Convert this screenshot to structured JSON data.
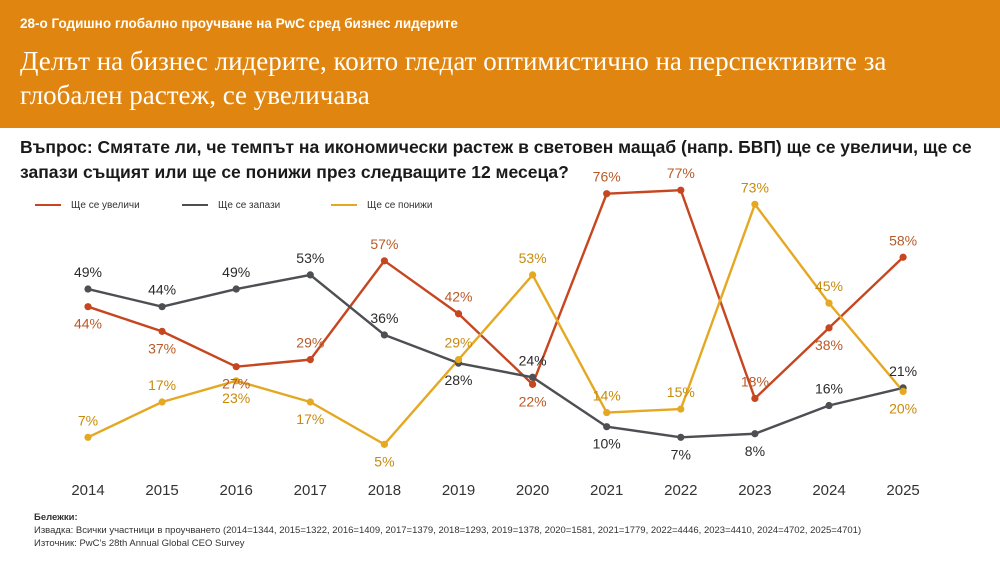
{
  "header": {
    "supertitle": "28-о Годишно глобално проучване на PwC сред бизнес лидерите",
    "title": "Делът на бизнес лидерите, които гледат оптимистично на перспективите за глобален растеж, се увеличава"
  },
  "question": "Въпрос: Смятате ли, че темпът на икономически растеж в световен мащаб (напр. БВП) ще се увеличи, ще се запази същият или ще се понижи през следващите 12 месеца?",
  "chart_data": {
    "type": "line",
    "categories": [
      "2014",
      "2015",
      "2016",
      "2017",
      "2018",
      "2019",
      "2020",
      "2021",
      "2022",
      "2023",
      "2024",
      "2025"
    ],
    "series": [
      {
        "name": "Ще се увеличи",
        "color": "#c6461f",
        "label_color": "#b85a28",
        "values": [
          44,
          37,
          27,
          29,
          57,
          42,
          22,
          76,
          77,
          18,
          38,
          58
        ]
      },
      {
        "name": "Ще се запази",
        "color": "#4d4f53",
        "label_color": "#2b2b2b",
        "values": [
          49,
          44,
          49,
          53,
          36,
          28,
          24,
          10,
          7,
          8,
          16,
          21
        ]
      },
      {
        "name": "Ще се понижи",
        "color": "#e5a823",
        "label_color": "#c88a0c",
        "values": [
          7,
          17,
          23,
          17,
          5,
          29,
          53,
          14,
          15,
          73,
          45,
          20
        ]
      }
    ],
    "value_suffix": "%",
    "ylim": [
      0,
      100
    ],
    "grid": false,
    "legend_position": "top-left"
  },
  "notes": {
    "heading": "Бележки:",
    "sample": "Извадка: Всички участници в проучването (2014=1344, 2015=1322, 2016=1409, 2017=1379, 2018=1293, 2019=1378, 2020=1581, 2021=1779, 2022=4446, 2023=4410, 2024=4702, 2025=4701)",
    "source": "Източник: PwC’s 28th Annual Global CEO Survey"
  }
}
